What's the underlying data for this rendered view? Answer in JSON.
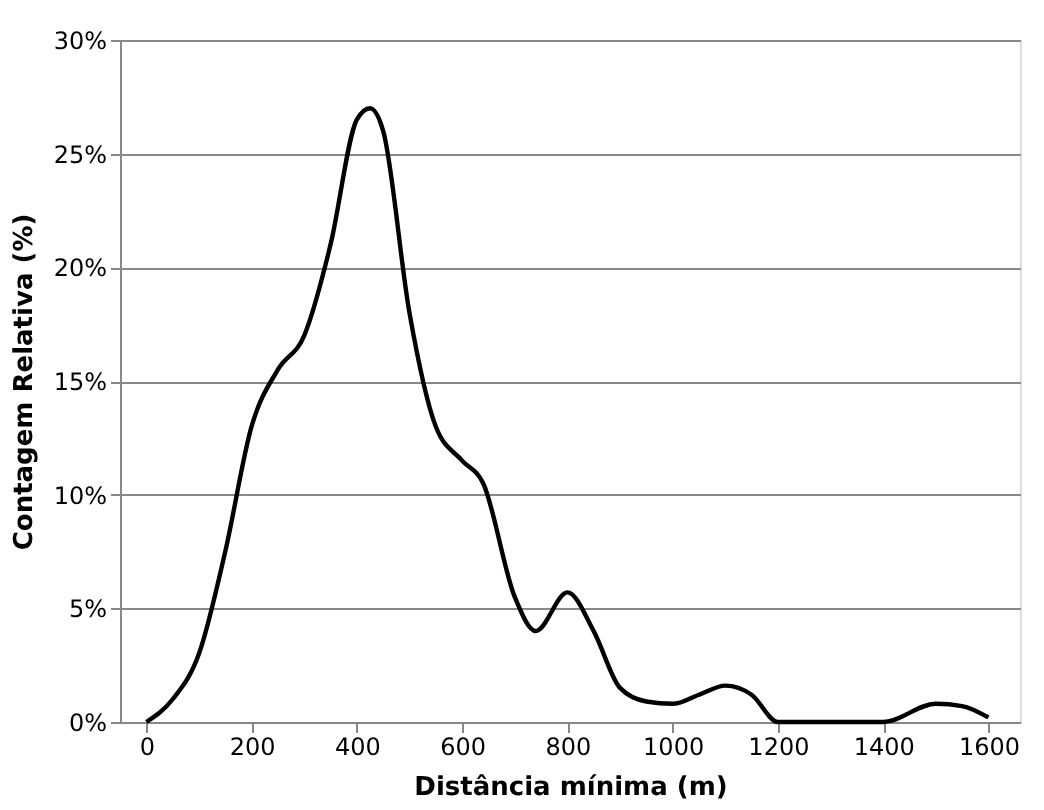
{
  "chart_data": {
    "type": "line",
    "xlabel": "Distância mínima (m)",
    "ylabel": "Contagem Relativa (%)",
    "x": [
      0,
      50,
      100,
      150,
      200,
      250,
      300,
      350,
      400,
      425,
      450,
      500,
      550,
      600,
      640,
      700,
      740,
      800,
      850,
      900,
      950,
      1000,
      1050,
      1100,
      1150,
      1200,
      1300,
      1400,
      1500,
      1550,
      1600
    ],
    "series": [
      {
        "color": "#000000",
        "values": [
          0,
          1,
          3,
          7.5,
          13,
          15.5,
          17,
          21,
          26.5,
          27,
          26,
          18,
          13,
          11.5,
          10.5,
          5.5,
          4,
          5.7,
          4,
          1.5,
          0.9,
          0.8,
          1.2,
          1.6,
          1.2,
          0,
          0,
          0,
          0.8,
          0.7,
          0.2
        ]
      }
    ],
    "xlim": [
      -50,
      1660
    ],
    "xticks": [
      0,
      200,
      400,
      600,
      800,
      1000,
      1200,
      1400,
      1600
    ],
    "ylim": [
      0,
      30
    ],
    "yticks": [
      {
        "value": 0,
        "label": "0%"
      },
      {
        "value": 5,
        "label": "5%"
      },
      {
        "value": 10,
        "label": "10%"
      },
      {
        "value": 15,
        "label": "15%"
      },
      {
        "value": 20,
        "label": "20%"
      },
      {
        "value": 25,
        "label": "25%"
      },
      {
        "value": 30,
        "label": "30%"
      }
    ],
    "grid": "y",
    "marker": "none",
    "line_style": "solid"
  }
}
